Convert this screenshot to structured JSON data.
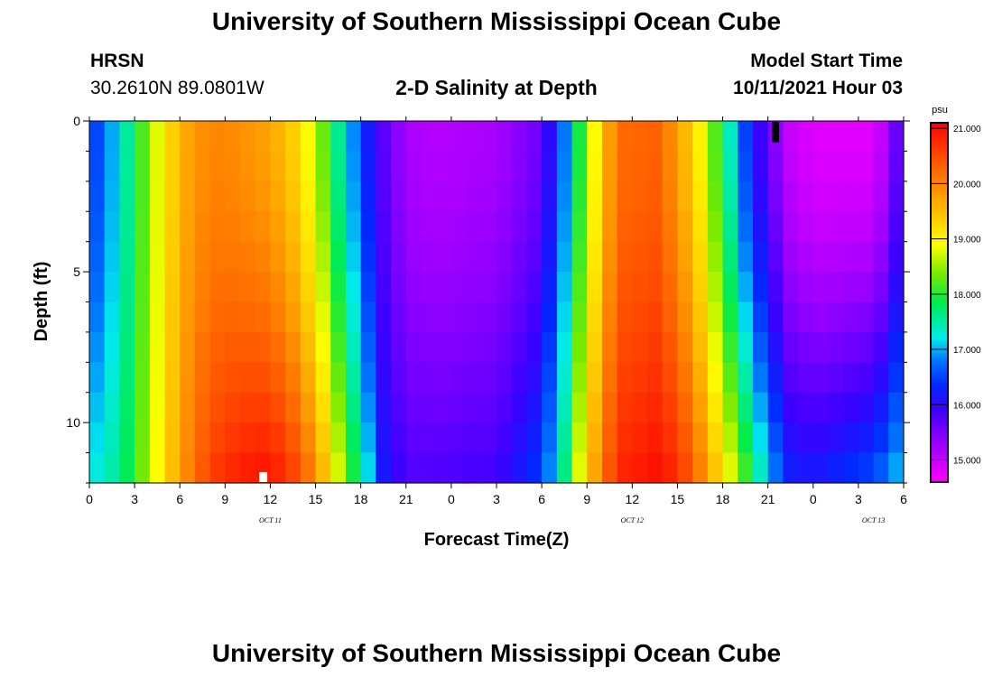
{
  "header": {
    "title": "University of Southern Mississippi Ocean Cube",
    "station": "HRSN",
    "coordinates": "30.2610N  89.0801W",
    "subtitle": "2-D Salinity at Depth",
    "model_start_label": "Model Start Time",
    "model_start_value": "10/11/2021 Hour 03"
  },
  "footer": {
    "title": "University of Southern Mississippi Ocean Cube"
  },
  "chart_data": {
    "type": "heatmap",
    "title": "2-D Salinity at Depth",
    "xlabel": "Forecast Time(Z)",
    "ylabel": "Depth (ft)",
    "x_tick_labels": [
      "0",
      "3",
      "6",
      "9",
      "12",
      "15",
      "18",
      "21",
      "0",
      "3",
      "6",
      "9",
      "12",
      "15",
      "18",
      "21",
      "0",
      "3",
      "6"
    ],
    "x_range_hours": [
      0,
      54
    ],
    "day_labels": [
      {
        "label": "OCT 11",
        "hour": 12
      },
      {
        "label": "OCT 12",
        "hour": 36
      },
      {
        "label": "OCT 13",
        "hour": 52
      }
    ],
    "y_tick_labels": [
      "0",
      "5",
      "10"
    ],
    "y_ticks_ft": [
      0,
      5,
      10
    ],
    "y_range_ft": [
      0,
      12
    ],
    "colorbar": {
      "unit": "psu",
      "min": 14.6,
      "max": 21.1,
      "tick_values": [
        21.0,
        20.0,
        19.0,
        18.0,
        17.0,
        16.0,
        15.0
      ],
      "tick_labels": [
        "21.000",
        "20.000",
        "19.000",
        "18.000",
        "17.000",
        "16.000",
        "15.000"
      ]
    },
    "time_nodes_hours": [
      0,
      2,
      4,
      6,
      8,
      10,
      12,
      14,
      15.5,
      17,
      18.5,
      19.5,
      21,
      23,
      27,
      30,
      31.5,
      33,
      35,
      37.5,
      39,
      40.5,
      42,
      43.5,
      45,
      46.5,
      48,
      50,
      52,
      53,
      54
    ],
    "surface_salinity_psu": [
      16.3,
      17.2,
      18.5,
      19.6,
      20.0,
      19.9,
      19.7,
      19.2,
      18.3,
      17.2,
      16.2,
      15.7,
      15.2,
      15.1,
      15.2,
      15.6,
      16.8,
      18.5,
      20.2,
      20.3,
      19.8,
      19.0,
      17.8,
      16.5,
      15.6,
      15.0,
      14.8,
      14.8,
      14.8,
      15.2,
      16.0
    ],
    "bottom_salinity_psu": [
      17.2,
      17.6,
      18.6,
      19.8,
      20.6,
      20.9,
      21.0,
      20.5,
      19.6,
      18.4,
      17.2,
      16.2,
      15.8,
      15.8,
      15.9,
      16.5,
      17.7,
      19.4,
      20.8,
      21.0,
      20.8,
      20.1,
      19.2,
      18.2,
      17.1,
      16.3,
      16.2,
      16.4,
      16.6,
      16.9,
      17.2
    ],
    "surface_marker": {
      "hour": 45.5,
      "depth_ft": 0.5,
      "color": "#000000"
    },
    "bottom_marker": {
      "hour": 11.5,
      "depth_ft": 11.7,
      "color": "#ffffff"
    }
  }
}
